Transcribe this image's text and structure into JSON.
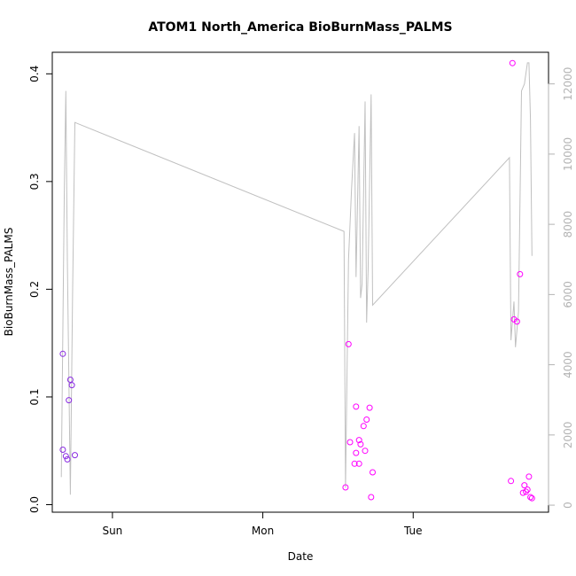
{
  "chart_data": {
    "type": "scatter",
    "title": "ATOM1 North_America BioBurnMass_PALMS",
    "xlabel": "Date",
    "ylabel": "BioBurnMass_PALMS",
    "x_tick_labels": [
      "Sun",
      "Mon",
      "Tue"
    ],
    "x_tick_positions_days": [
      1,
      2,
      3
    ],
    "xlim_days": [
      0.6,
      3.9
    ],
    "ylim": [
      -0.007,
      0.42
    ],
    "y_ticks": [
      0.0,
      0.1,
      0.2,
      0.3,
      0.4
    ],
    "y_tick_labels": [
      "0.0",
      "0.1",
      "0.2",
      "0.3",
      "0.4"
    ],
    "y2_ticks": [
      0,
      2000,
      4000,
      6000,
      8000,
      10000,
      12000
    ],
    "y2_tick_labels": [
      "0",
      "2000",
      "4000",
      "6000",
      "8000",
      "10000",
      "12000"
    ],
    "y2lim": [
      -200,
      12900
    ],
    "grid": false,
    "colors": {
      "points_early": "#8a2be2",
      "points_late": "#ff00ff",
      "altitude_line": "#c0c0c0",
      "right_axis": "#b3b3b3"
    },
    "series": [
      {
        "color_key": "points_early",
        "points": [
          {
            "x": 0.67,
            "y": 0.14
          },
          {
            "x": 0.67,
            "y": 0.051
          },
          {
            "x": 0.69,
            "y": 0.045
          },
          {
            "x": 0.7,
            "y": 0.042
          },
          {
            "x": 0.71,
            "y": 0.097
          },
          {
            "x": 0.72,
            "y": 0.116
          },
          {
            "x": 0.73,
            "y": 0.111
          },
          {
            "x": 0.75,
            "y": 0.046
          }
        ]
      },
      {
        "color_key": "points_late",
        "points": [
          {
            "x": 2.55,
            "y": 0.016
          },
          {
            "x": 2.57,
            "y": 0.149
          },
          {
            "x": 2.58,
            "y": 0.058
          },
          {
            "x": 2.61,
            "y": 0.038
          },
          {
            "x": 2.62,
            "y": 0.091
          },
          {
            "x": 2.62,
            "y": 0.048
          },
          {
            "x": 2.64,
            "y": 0.06
          },
          {
            "x": 2.64,
            "y": 0.038
          },
          {
            "x": 2.65,
            "y": 0.056
          },
          {
            "x": 2.67,
            "y": 0.073
          },
          {
            "x": 2.68,
            "y": 0.05
          },
          {
            "x": 2.69,
            "y": 0.079
          },
          {
            "x": 2.71,
            "y": 0.09
          },
          {
            "x": 2.72,
            "y": 0.007
          },
          {
            "x": 2.73,
            "y": 0.03
          },
          {
            "x": 3.65,
            "y": 0.022
          },
          {
            "x": 3.66,
            "y": 0.41
          },
          {
            "x": 3.67,
            "y": 0.172
          },
          {
            "x": 3.69,
            "y": 0.17
          },
          {
            "x": 3.71,
            "y": 0.214
          },
          {
            "x": 3.73,
            "y": 0.011
          },
          {
            "x": 3.74,
            "y": 0.018
          },
          {
            "x": 3.75,
            "y": 0.012
          },
          {
            "x": 3.76,
            "y": 0.014
          },
          {
            "x": 3.77,
            "y": 0.026
          },
          {
            "x": 3.78,
            "y": 0.007
          },
          {
            "x": 3.79,
            "y": 0.006
          }
        ]
      },
      {
        "color_key": "altitude_line",
        "axis": "right",
        "points": [
          {
            "x": 0.66,
            "y": 800
          },
          {
            "x": 0.68,
            "y": 9000
          },
          {
            "x": 0.69,
            "y": 11800
          },
          {
            "x": 0.7,
            "y": 7000
          },
          {
            "x": 0.72,
            "y": 300
          },
          {
            "x": 0.735,
            "y": 6000
          },
          {
            "x": 0.75,
            "y": 10900
          },
          {
            "x": 2.54,
            "y": 7800
          },
          {
            "x": 2.55,
            "y": 500
          },
          {
            "x": 2.57,
            "y": 7000
          },
          {
            "x": 2.59,
            "y": 9000
          },
          {
            "x": 2.61,
            "y": 10600
          },
          {
            "x": 2.62,
            "y": 6500
          },
          {
            "x": 2.64,
            "y": 10800
          },
          {
            "x": 2.65,
            "y": 5900
          },
          {
            "x": 2.66,
            "y": 6300
          },
          {
            "x": 2.68,
            "y": 11500
          },
          {
            "x": 2.69,
            "y": 5200
          },
          {
            "x": 2.7,
            "y": 6700
          },
          {
            "x": 2.72,
            "y": 11700
          },
          {
            "x": 2.73,
            "y": 5700
          },
          {
            "x": 3.64,
            "y": 9900
          },
          {
            "x": 3.65,
            "y": 4700
          },
          {
            "x": 3.67,
            "y": 5800
          },
          {
            "x": 3.68,
            "y": 4500
          },
          {
            "x": 3.7,
            "y": 5500
          },
          {
            "x": 3.72,
            "y": 11800
          },
          {
            "x": 3.74,
            "y": 12000
          },
          {
            "x": 3.76,
            "y": 12600
          },
          {
            "x": 3.77,
            "y": 12600
          },
          {
            "x": 3.78,
            "y": 11000
          },
          {
            "x": 3.79,
            "y": 7100
          }
        ]
      }
    ]
  }
}
